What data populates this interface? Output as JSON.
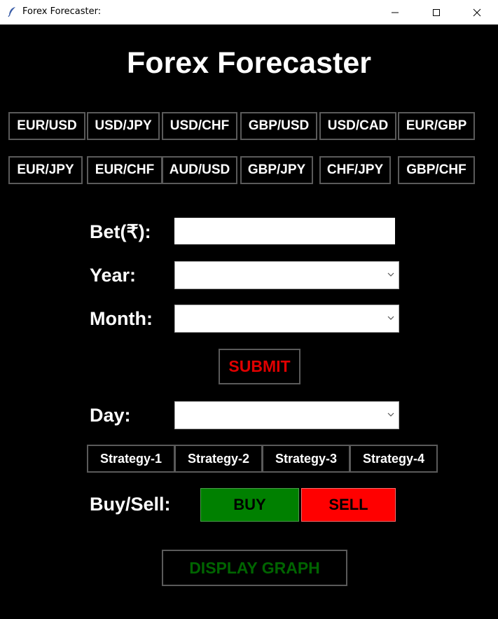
{
  "window": {
    "title": "Forex Forecaster:"
  },
  "header": {
    "title": "Forex Forecaster"
  },
  "pairs_row1": [
    "EUR/USD",
    "USD/JPY",
    "USD/CHF",
    "GBP/USD",
    "USD/CAD",
    "EUR/GBP"
  ],
  "pairs_row2": [
    "EUR/JPY",
    "EUR/CHF",
    "AUD/USD",
    "GBP/JPY",
    "CHF/JPY",
    "GBP/CHF"
  ],
  "form": {
    "bet_label": "Bet(₹):",
    "bet_value": "",
    "year_label": "Year:",
    "year_value": "",
    "month_label": "Month:",
    "month_value": "",
    "submit_label": "SUBMIT",
    "day_label": "Day:",
    "day_value": ""
  },
  "strategies": [
    "Strategy-1",
    "Strategy-2",
    "Strategy-3",
    "Strategy-4"
  ],
  "trade": {
    "label": "Buy/Sell:",
    "buy_label": "BUY",
    "sell_label": "SELL"
  },
  "graph": {
    "label": "DISPLAY GRAPH"
  },
  "colors": {
    "background": "#000000",
    "submit_text": "#e00000",
    "buy": "#008000",
    "sell": "#ff0000",
    "graph_text": "#006400",
    "text": "#ffffff"
  }
}
